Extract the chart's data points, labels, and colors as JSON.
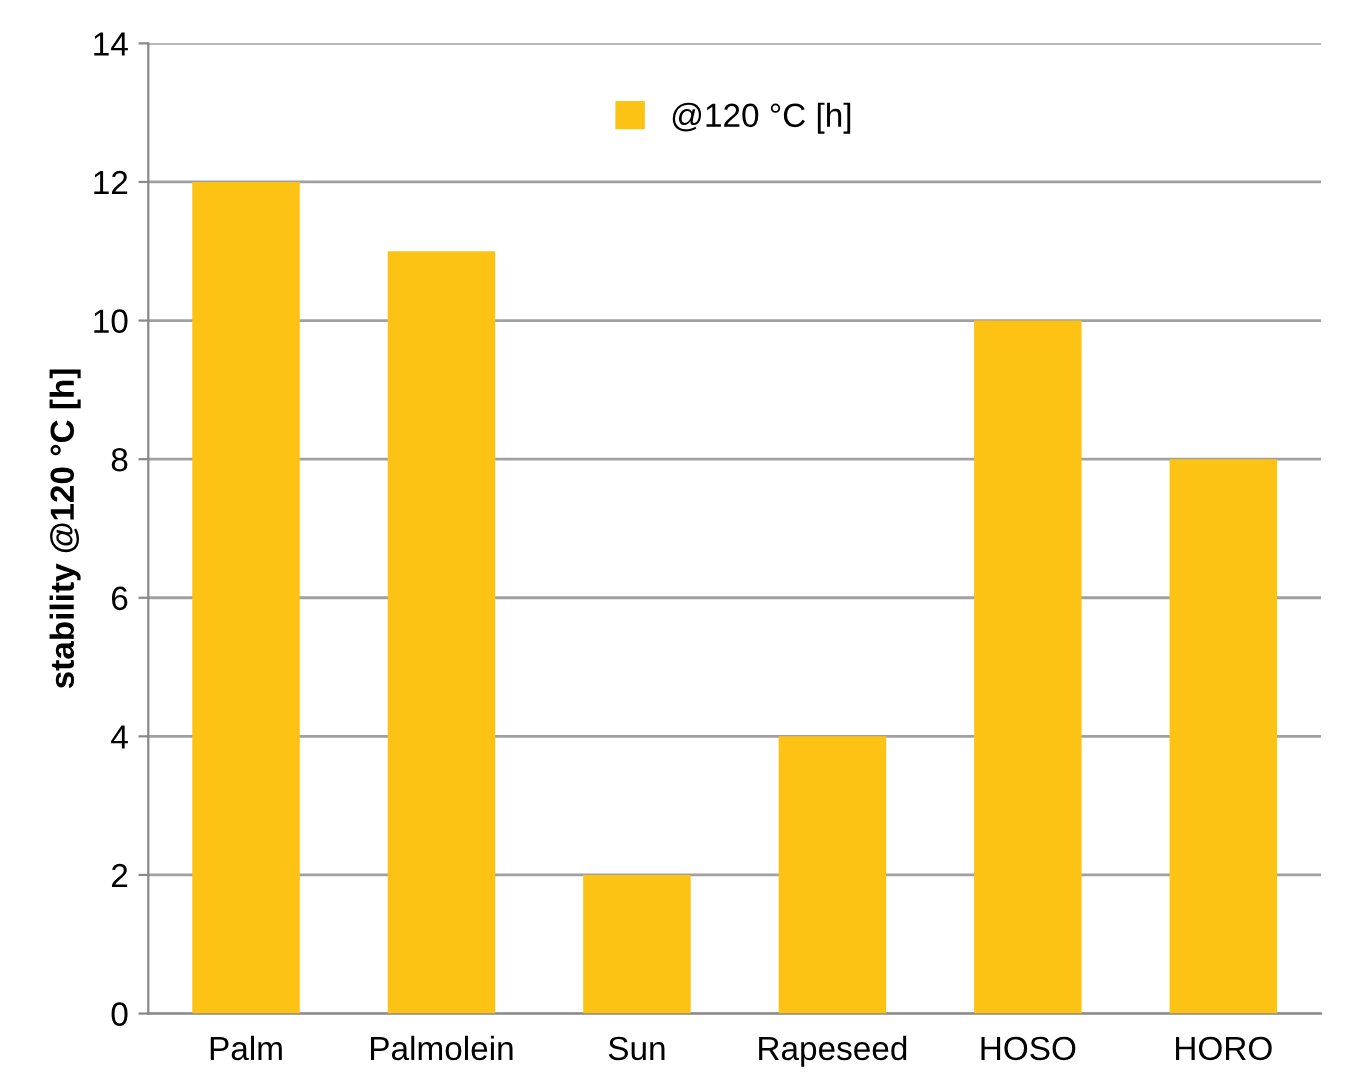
{
  "chart_data": {
    "type": "bar",
    "ylabel": "stability @120 °C [h]",
    "categories": [
      "Palm",
      "Palmolein",
      "Sun",
      "Rapeseed",
      "HOSO",
      "HORO"
    ],
    "series": [
      {
        "name": "@120 °C [h]",
        "color": "#fcc314",
        "values": [
          12,
          11,
          2,
          4,
          10,
          8
        ]
      }
    ],
    "ylim": [
      0,
      14
    ],
    "yticks": [
      0,
      2,
      4,
      6,
      8,
      10,
      12,
      14
    ],
    "grid": "y",
    "legend": "top"
  }
}
